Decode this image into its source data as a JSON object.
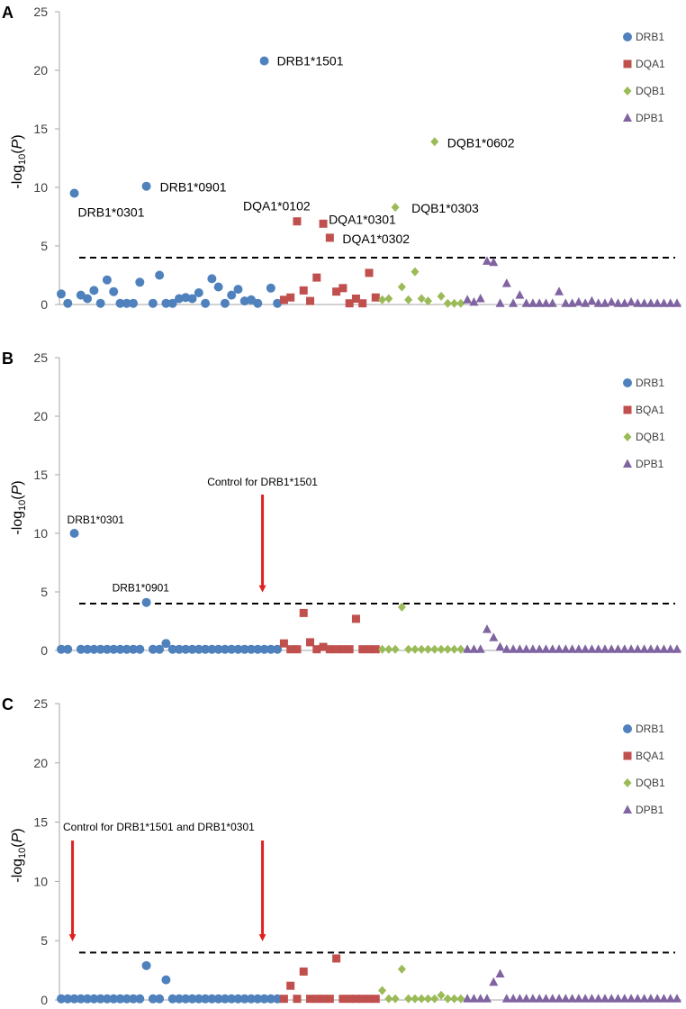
{
  "chart_data": [
    {
      "type": "scatter",
      "panel": "A",
      "ylabel": "-log10(P)",
      "ylim": [
        0,
        25
      ],
      "yticks": [
        0,
        5,
        10,
        15,
        20,
        25
      ],
      "threshold": 4,
      "legend": [
        "DRB1",
        "DQA1",
        "DQB1",
        "DPB1"
      ],
      "annotations": [
        {
          "text": "DRB1*1501",
          "x": 31,
          "y": 20.8
        },
        {
          "text": "DRB1*0301",
          "x": 2,
          "y": 9.5
        },
        {
          "text": "DRB1*0901",
          "x": 13,
          "y": 10.1
        },
        {
          "text": "DQA1*0102",
          "x": 36,
          "y": 7.1
        },
        {
          "text": "DQA1*0301",
          "x": 40,
          "y": 6.9
        },
        {
          "text": "DQA1*0302",
          "x": 41,
          "y": 5.7
        },
        {
          "text": "DQB1*0303",
          "x": 51,
          "y": 8.3
        },
        {
          "text": "DQB1*0602",
          "x": 57,
          "y": 13.9
        }
      ],
      "arrows": [],
      "series": [
        {
          "name": "DRB1",
          "color": "#4F81BD",
          "marker": "circle",
          "x": [
            0,
            1,
            2,
            3,
            4,
            5,
            6,
            7,
            8,
            9,
            10,
            11,
            12,
            13,
            14,
            15,
            16,
            17,
            18,
            19,
            20,
            21,
            22,
            23,
            24,
            25,
            26,
            27,
            28,
            29,
            30,
            31,
            32,
            33
          ],
          "y": [
            0.9,
            0.1,
            9.5,
            0.8,
            0.5,
            1.2,
            0.1,
            2.1,
            1.1,
            0.1,
            0.1,
            0.1,
            1.9,
            10.1,
            0.1,
            2.5,
            0.1,
            0.1,
            0.5,
            0.6,
            0.5,
            1.0,
            0.1,
            2.2,
            1.5,
            0.1,
            0.8,
            1.3,
            0.3,
            0.4,
            0.1,
            20.8,
            1.4,
            0.1
          ]
        },
        {
          "name": "DQA1",
          "color": "#C0504D",
          "marker": "square",
          "x": [
            34,
            35,
            36,
            37,
            38,
            39,
            40,
            41,
            42,
            43,
            44,
            45,
            46,
            47,
            48
          ],
          "y": [
            0.4,
            0.6,
            7.1,
            1.2,
            0.3,
            2.3,
            6.9,
            5.7,
            1.1,
            1.4,
            0.1,
            0.5,
            0.1,
            2.7,
            0.6
          ]
        },
        {
          "name": "DQB1",
          "color": "#9BBB59",
          "marker": "diamond",
          "x": [
            49,
            50,
            51,
            52,
            53,
            54,
            55,
            56,
            57,
            58,
            59,
            60,
            61
          ],
          "y": [
            0.4,
            0.5,
            8.3,
            1.5,
            0.4,
            2.8,
            0.5,
            0.3,
            13.9,
            0.7,
            0.1,
            0.1,
            0.1
          ]
        },
        {
          "name": "DPB1",
          "color": "#8064A2",
          "marker": "triangle",
          "x": [
            62,
            63,
            64,
            65,
            66,
            67,
            68,
            69,
            70,
            71,
            72,
            73,
            74,
            75,
            76,
            77,
            78,
            79,
            80,
            81,
            82,
            83,
            84,
            85,
            86,
            87,
            88,
            89,
            90,
            91,
            92,
            93,
            94
          ],
          "y": [
            0.4,
            0.2,
            0.5,
            3.7,
            3.6,
            0.1,
            1.8,
            0.1,
            0.8,
            0.1,
            0.1,
            0.1,
            0.1,
            0.1,
            1.1,
            0.1,
            0.1,
            0.2,
            0.1,
            0.3,
            0.1,
            0.1,
            0.2,
            0.1,
            0.1,
            0.2,
            0.1,
            0.1,
            0.1,
            0.1,
            0.1,
            0.1,
            0.1
          ]
        }
      ]
    },
    {
      "type": "scatter",
      "panel": "B",
      "ylabel": "-log10(P)",
      "ylim": [
        0,
        25
      ],
      "yticks": [
        0,
        5,
        10,
        15,
        20,
        25
      ],
      "threshold": 4,
      "legend": [
        "DRB1",
        "BQA1",
        "DQB1",
        "DPB1"
      ],
      "annotations": [
        {
          "text": "DRB1*0301",
          "x": 2,
          "y": 10.0
        },
        {
          "text": "DRB1*0901",
          "x": 13,
          "y": 4.1
        }
      ],
      "arrows": [
        {
          "text": "Control for DRB1*1501",
          "x": 31
        }
      ],
      "series": [
        {
          "name": "DRB1",
          "color": "#4F81BD",
          "marker": "circle",
          "x": [
            0,
            1,
            2,
            3,
            4,
            5,
            6,
            7,
            8,
            9,
            10,
            11,
            12,
            13,
            14,
            15,
            16,
            17,
            18,
            19,
            20,
            21,
            22,
            23,
            24,
            25,
            26,
            27,
            28,
            29,
            30,
            31,
            32,
            33
          ],
          "y": [
            0.1,
            0.1,
            10.0,
            0.1,
            0.1,
            0.1,
            0.1,
            0.1,
            0.1,
            0.1,
            0.1,
            0.1,
            0.1,
            4.1,
            0.1,
            0.1,
            0.6,
            0.1,
            0.1,
            0.1,
            0.1,
            0.1,
            0.1,
            0.1,
            0.1,
            0.1,
            0.1,
            0.1,
            0.1,
            0.1,
            0.1,
            0.1,
            0.1,
            0.1
          ]
        },
        {
          "name": "BQA1",
          "color": "#C0504D",
          "marker": "square",
          "x": [
            34,
            35,
            36,
            37,
            38,
            39,
            40,
            41,
            42,
            43,
            44,
            45,
            46,
            47,
            48
          ],
          "y": [
            0.6,
            0.1,
            0.1,
            3.2,
            0.7,
            0.1,
            0.3,
            0.1,
            0.1,
            0.1,
            0.1,
            2.7,
            0.1,
            0.1,
            0.1
          ]
        },
        {
          "name": "DQB1",
          "color": "#9BBB59",
          "marker": "diamond",
          "x": [
            49,
            50,
            51,
            52,
            53,
            54,
            55,
            56,
            57,
            58,
            59,
            60,
            61
          ],
          "y": [
            0.1,
            0.1,
            0.1,
            3.7,
            0.1,
            0.1,
            0.1,
            0.1,
            0.1,
            0.1,
            0.1,
            0.1,
            0.1
          ]
        },
        {
          "name": "DPB1",
          "color": "#8064A2",
          "marker": "triangle",
          "x": [
            62,
            63,
            64,
            65,
            66,
            67,
            68,
            69,
            70,
            71,
            72,
            73,
            74,
            75,
            76,
            77,
            78,
            79,
            80,
            81,
            82,
            83,
            84,
            85,
            86,
            87,
            88,
            89,
            90,
            91,
            92,
            93,
            94
          ],
          "y": [
            0.1,
            0.1,
            0.1,
            1.8,
            1.1,
            0.3,
            0.1,
            0.1,
            0.1,
            0.1,
            0.1,
            0.1,
            0.1,
            0.1,
            0.1,
            0.1,
            0.1,
            0.1,
            0.1,
            0.1,
            0.1,
            0.1,
            0.1,
            0.1,
            0.1,
            0.1,
            0.1,
            0.1,
            0.1,
            0.1,
            0.1,
            0.1,
            0.1
          ]
        }
      ]
    },
    {
      "type": "scatter",
      "panel": "C",
      "ylabel": "-log10(P)",
      "ylim": [
        0,
        25
      ],
      "yticks": [
        0,
        5,
        10,
        15,
        20,
        25
      ],
      "threshold": 4,
      "legend": [
        "DRB1",
        "BQA1",
        "DQB1",
        "DPB1"
      ],
      "annotations": [],
      "arrowLabel": "Control for DRB1*1501 and DRB1*0301",
      "arrows": [
        {
          "x": 2
        },
        {
          "x": 31
        }
      ],
      "series": [
        {
          "name": "DRB1",
          "color": "#4F81BD",
          "marker": "circle",
          "x": [
            0,
            1,
            2,
            3,
            4,
            5,
            6,
            7,
            8,
            9,
            10,
            11,
            12,
            13,
            14,
            15,
            16,
            17,
            18,
            19,
            20,
            21,
            22,
            23,
            24,
            25,
            26,
            27,
            28,
            29,
            30,
            31,
            32,
            33
          ],
          "y": [
            0.1,
            0.1,
            0.1,
            0.1,
            0.1,
            0.1,
            0.1,
            0.1,
            0.1,
            0.1,
            0.1,
            0.1,
            0.1,
            2.9,
            0.1,
            0.1,
            1.7,
            0.1,
            0.1,
            0.1,
            0.1,
            0.1,
            0.1,
            0.1,
            0.1,
            0.1,
            0.1,
            0.1,
            0.1,
            0.1,
            0.1,
            0.1,
            0.1,
            0.1
          ]
        },
        {
          "name": "BQA1",
          "color": "#C0504D",
          "marker": "square",
          "x": [
            34,
            35,
            36,
            37,
            38,
            39,
            40,
            41,
            42,
            43,
            44,
            45,
            46,
            47,
            48
          ],
          "y": [
            0.1,
            1.2,
            0.1,
            2.4,
            0.1,
            0.1,
            0.1,
            0.1,
            3.5,
            0.1,
            0.1,
            0.1,
            0.1,
            0.1,
            0.1
          ]
        },
        {
          "name": "DQB1",
          "color": "#9BBB59",
          "marker": "diamond",
          "x": [
            49,
            50,
            51,
            52,
            53,
            54,
            55,
            56,
            57,
            58,
            59,
            60,
            61
          ],
          "y": [
            0.8,
            0.1,
            0.1,
            2.6,
            0.1,
            0.1,
            0.1,
            0.1,
            0.1,
            0.4,
            0.1,
            0.1,
            0.1
          ]
        },
        {
          "name": "DPB1",
          "color": "#8064A2",
          "marker": "triangle",
          "x": [
            62,
            63,
            64,
            65,
            66,
            67,
            68,
            69,
            70,
            71,
            72,
            73,
            74,
            75,
            76,
            77,
            78,
            79,
            80,
            81,
            82,
            83,
            84,
            85,
            86,
            87,
            88,
            89,
            90,
            91,
            92,
            93,
            94
          ],
          "y": [
            0.1,
            0.1,
            0.1,
            0.1,
            1.5,
            2.2,
            0.1,
            0.1,
            0.1,
            0.1,
            0.1,
            0.1,
            0.1,
            0.1,
            0.1,
            0.1,
            0.1,
            0.1,
            0.1,
            0.1,
            0.1,
            0.1,
            0.1,
            0.1,
            0.1,
            0.1,
            0.1,
            0.1,
            0.1,
            0.1,
            0.1,
            0.1,
            0.1
          ]
        }
      ]
    }
  ]
}
